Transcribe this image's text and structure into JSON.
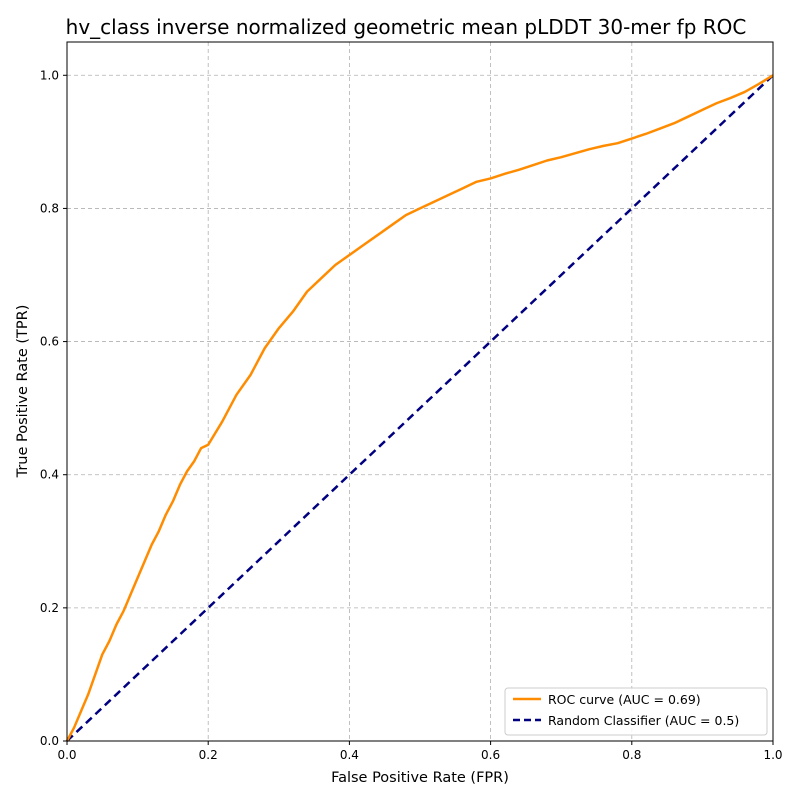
{
  "chart_data": {
    "type": "line",
    "title": "hv_class inverse normalized geometric mean pLDDT 30-mer fp ROC",
    "xlabel": "False Positive Rate (FPR)",
    "ylabel": "True Positive Rate (TPR)",
    "xlim": [
      0.0,
      1.0
    ],
    "ylim": [
      0.0,
      1.05
    ],
    "xticks": [
      "0.0",
      "0.2",
      "0.4",
      "0.6",
      "0.8",
      "1.0"
    ],
    "yticks": [
      "0.0",
      "0.2",
      "0.4",
      "0.6",
      "0.8",
      "1.0"
    ],
    "grid": true,
    "legend_position": "bottom-right",
    "series": [
      {
        "name": "ROC curve (AUC = 0.69)",
        "color": "#ff8c00",
        "style": "solid",
        "x": [
          0.0,
          0.01,
          0.02,
          0.03,
          0.04,
          0.05,
          0.06,
          0.07,
          0.08,
          0.09,
          0.1,
          0.11,
          0.12,
          0.13,
          0.14,
          0.15,
          0.16,
          0.17,
          0.18,
          0.19,
          0.2,
          0.22,
          0.24,
          0.26,
          0.28,
          0.3,
          0.32,
          0.34,
          0.36,
          0.38,
          0.4,
          0.42,
          0.44,
          0.46,
          0.48,
          0.5,
          0.52,
          0.54,
          0.56,
          0.58,
          0.6,
          0.62,
          0.64,
          0.66,
          0.68,
          0.7,
          0.72,
          0.74,
          0.76,
          0.78,
          0.8,
          0.82,
          0.84,
          0.86,
          0.88,
          0.9,
          0.92,
          0.94,
          0.96,
          0.98,
          1.0
        ],
        "y": [
          0.0,
          0.02,
          0.045,
          0.07,
          0.1,
          0.13,
          0.15,
          0.175,
          0.195,
          0.22,
          0.245,
          0.27,
          0.295,
          0.315,
          0.34,
          0.36,
          0.385,
          0.405,
          0.42,
          0.44,
          0.445,
          0.48,
          0.52,
          0.55,
          0.59,
          0.62,
          0.645,
          0.675,
          0.695,
          0.715,
          0.73,
          0.745,
          0.76,
          0.775,
          0.79,
          0.8,
          0.81,
          0.82,
          0.83,
          0.84,
          0.845,
          0.852,
          0.858,
          0.865,
          0.872,
          0.877,
          0.883,
          0.889,
          0.894,
          0.898,
          0.905,
          0.912,
          0.92,
          0.928,
          0.938,
          0.948,
          0.958,
          0.966,
          0.975,
          0.987,
          1.0
        ]
      },
      {
        "name": "Random Classifier (AUC = 0.5)",
        "color": "#000080",
        "style": "dashed",
        "x": [
          0.0,
          1.0
        ],
        "y": [
          0.0,
          1.0
        ]
      }
    ]
  }
}
